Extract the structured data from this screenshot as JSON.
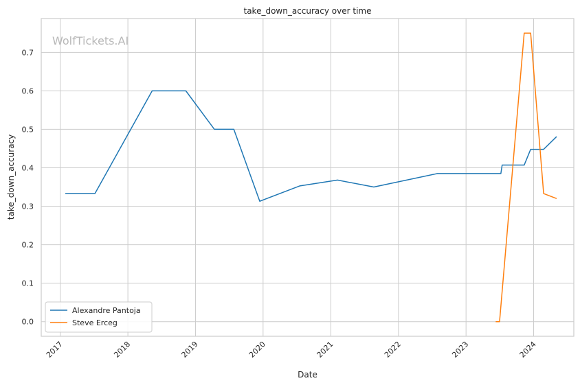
{
  "chart_data": {
    "type": "line",
    "title": "take_down_accuracy over time",
    "xlabel": "Date",
    "ylabel": "take_down_accuracy",
    "watermark": "WolfTickets.AI",
    "x_range": [
      "2016-09-20",
      "2024-08-05"
    ],
    "ylim": [
      -0.038,
      0.788
    ],
    "x_ticks": [
      "2017",
      "2018",
      "2019",
      "2020",
      "2021",
      "2022",
      "2023",
      "2024"
    ],
    "y_ticks": [
      "0.0",
      "0.1",
      "0.2",
      "0.3",
      "0.4",
      "0.5",
      "0.6",
      "0.7"
    ],
    "grid": true,
    "legend_position": "lower-left",
    "series": [
      {
        "name": "Alexandre Pantoja",
        "color": "#1f77b4",
        "points": [
          {
            "x": "2017-01-28",
            "y": 0.333
          },
          {
            "x": "2017-07-07",
            "y": 0.333
          },
          {
            "x": "2018-05-12",
            "y": 0.6
          },
          {
            "x": "2018-11-10",
            "y": 0.6
          },
          {
            "x": "2019-04-13",
            "y": 0.5
          },
          {
            "x": "2019-07-27",
            "y": 0.5
          },
          {
            "x": "2019-12-14",
            "y": 0.313
          },
          {
            "x": "2020-07-18",
            "y": 0.353
          },
          {
            "x": "2021-02-06",
            "y": 0.368
          },
          {
            "x": "2021-08-21",
            "y": 0.35
          },
          {
            "x": "2022-07-30",
            "y": 0.385
          },
          {
            "x": "2023-07-08",
            "y": 0.385
          },
          {
            "x": "2023-07-15",
            "y": 0.407
          },
          {
            "x": "2023-11-11",
            "y": 0.407
          },
          {
            "x": "2023-12-16",
            "y": 0.448
          },
          {
            "x": "2024-02-24",
            "y": 0.448
          },
          {
            "x": "2024-05-04",
            "y": 0.481
          }
        ]
      },
      {
        "name": "Steve Erceg",
        "color": "#ff7f0e",
        "points": [
          {
            "x": "2023-06-10",
            "y": 0.0
          },
          {
            "x": "2023-07-01",
            "y": 0.0
          },
          {
            "x": "2023-11-11",
            "y": 0.75
          },
          {
            "x": "2023-12-16",
            "y": 0.75
          },
          {
            "x": "2024-02-24",
            "y": 0.333
          },
          {
            "x": "2024-05-04",
            "y": 0.32
          }
        ]
      }
    ]
  }
}
